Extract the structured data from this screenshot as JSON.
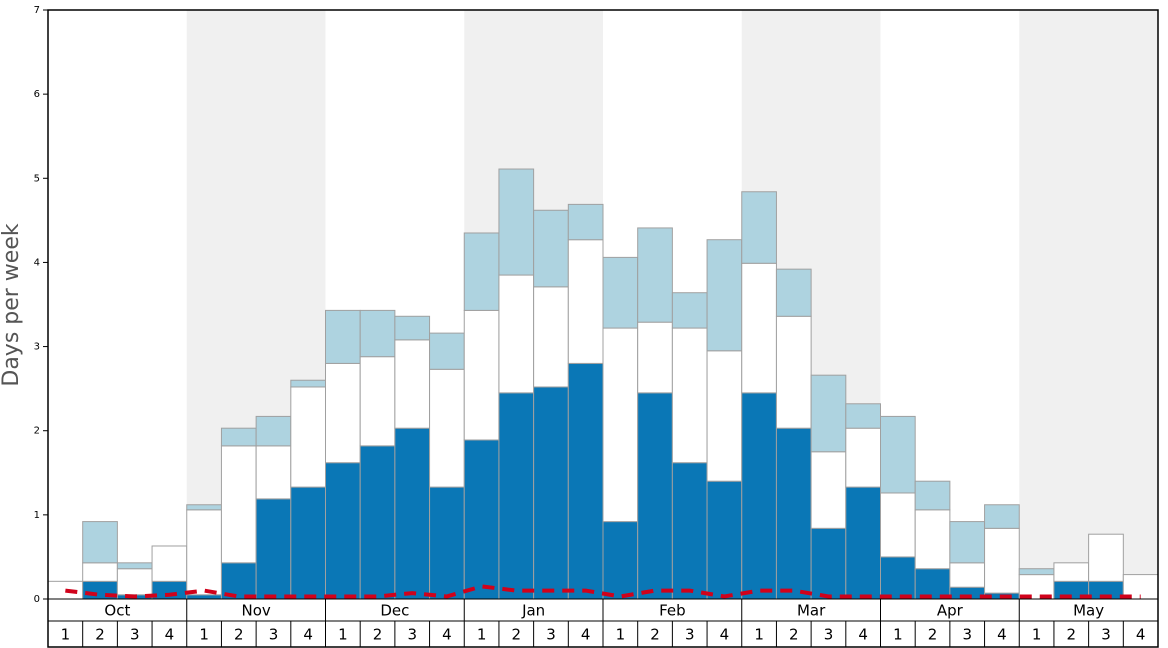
{
  "chart_data": {
    "type": "stacked-bar",
    "y_label": "Days per week",
    "months": [
      "Oct",
      "Nov",
      "Dec",
      "Jan",
      "Feb",
      "Mar",
      "Apr",
      "May"
    ],
    "categories": [
      "1",
      "2",
      "3",
      "4",
      "1",
      "2",
      "3",
      "4",
      "1",
      "2",
      "3",
      "4",
      "1",
      "2",
      "3",
      "4",
      "1",
      "2",
      "3",
      "4",
      "1",
      "2",
      "3",
      "4",
      "1",
      "2",
      "3",
      "4",
      "1",
      "2",
      "3",
      "4"
    ],
    "series": [
      {
        "color": "#0a77b6",
        "values": [
          0,
          0.21,
          0.05,
          0.21,
          0.05,
          0.43,
          1.19,
          1.33,
          1.62,
          1.82,
          2.03,
          1.33,
          1.89,
          2.45,
          2.52,
          2.8,
          0.92,
          2.45,
          1.62,
          1.4,
          2.45,
          2.03,
          0.84,
          1.33,
          0.5,
          0.36,
          0.14,
          0.07,
          0,
          0.21,
          0.21,
          0
        ]
      },
      {
        "color": "#ffffff",
        "values": [
          0.21,
          0.22,
          0.31,
          0.42,
          1.01,
          1.39,
          0.63,
          1.19,
          1.18,
          1.06,
          1.05,
          1.4,
          1.54,
          1.4,
          1.19,
          1.47,
          2.3,
          0.84,
          1.6,
          1.55,
          1.54,
          1.33,
          0.91,
          0.7,
          0.76,
          0.7,
          0.29,
          0.77,
          0.29,
          0.22,
          0.56,
          0.29
        ]
      },
      {
        "color": "#aed3e0",
        "values": [
          0,
          0.49,
          0.07,
          0,
          0.06,
          0.21,
          0.35,
          0.08,
          0.63,
          0.55,
          0.28,
          0.43,
          0.92,
          1.26,
          0.91,
          0.42,
          0.84,
          1.12,
          0.42,
          1.32,
          0.85,
          0.56,
          0.91,
          0.29,
          0.91,
          0.34,
          0.49,
          0.28,
          0.07,
          0,
          0,
          0
        ]
      }
    ],
    "line": {
      "color": "#d0021b",
      "values": [
        0.1,
        0.05,
        0.03,
        0.05,
        0.1,
        0.03,
        0.03,
        0.03,
        0.03,
        0.03,
        0.07,
        0.03,
        0.15,
        0.1,
        0.1,
        0.1,
        0.03,
        0.1,
        0.1,
        0.03,
        0.1,
        0.1,
        0.03,
        0.03,
        0.03,
        0.03,
        0.03,
        0.03,
        0.03,
        0.03,
        0.03,
        0.03
      ]
    },
    "ylim": [
      0,
      7
    ],
    "yticks": [
      0,
      1,
      2,
      3,
      4,
      5,
      6,
      7
    ]
  }
}
